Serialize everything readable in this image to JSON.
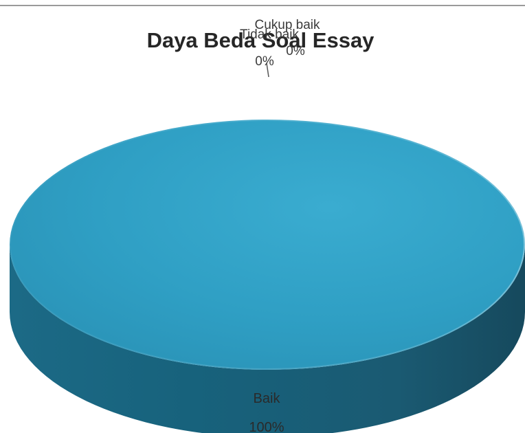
{
  "chart_data": {
    "type": "pie",
    "style": "3d",
    "title": "Daya Beda Soal Essay",
    "categories": [
      "Baik",
      "Cukup baik",
      "Tidak baik"
    ],
    "values": [
      100,
      0,
      0
    ],
    "data_labels": [
      {
        "category": "Baik",
        "percent": "100%"
      },
      {
        "category": "Cukup baik",
        "percent": "0%"
      },
      {
        "category": "Tidak baik",
        "percent": "0%"
      }
    ],
    "colors": [
      "#2e9fc4",
      "#1f6f8c",
      "#1a5f78"
    ],
    "legend": "none"
  }
}
